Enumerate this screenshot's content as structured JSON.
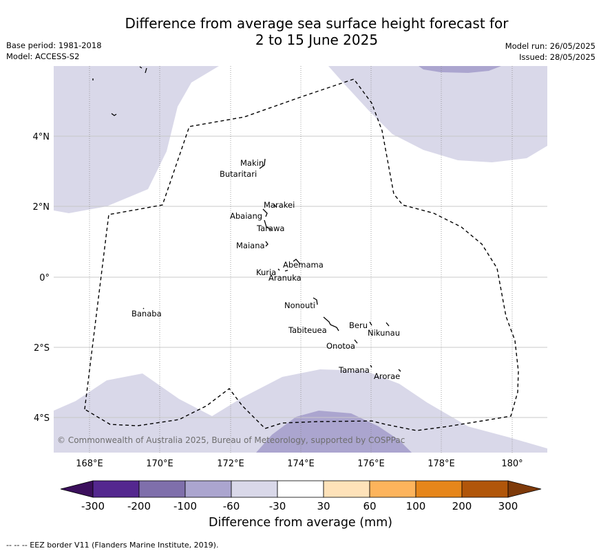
{
  "title_line1": "Difference from average sea surface height forecast for",
  "title_line2": "2 to 15 June 2025",
  "meta_left": [
    "Base period: 1981-2018",
    "Model: ACCESS-S2"
  ],
  "meta_right": [
    "Model run: 26/05/2025",
    "Issued: 28/05/2025"
  ],
  "lat_ticks": [
    "4°N",
    "2°N",
    "0°",
    "2°S",
    "4°S"
  ],
  "lon_ticks": [
    "168°E",
    "170°E",
    "172°E",
    "174°E",
    "176°E",
    "178°E",
    "180°"
  ],
  "islands": [
    "Makin",
    "Butaritari",
    "Marakei",
    "Abaiang",
    "Tarawa",
    "Maiana",
    "Abemama",
    "Kuria",
    "Aranuka",
    "Nonouti",
    "Banaba",
    "Tabiteuea",
    "Beru",
    "Nikunau",
    "Onotoa",
    "Tamana",
    "Arorae"
  ],
  "copyright": "© Commonwealth of Australia 2025, Bureau of Meteorology, supported by COSPPac",
  "colorbar": {
    "bins": [
      {
        "range": "< -300",
        "color": "#3b0f5c"
      },
      {
        "range": "-300 to -200",
        "color": "#54278f"
      },
      {
        "range": "-200 to -100",
        "color": "#7f6fab"
      },
      {
        "range": "-100 to -60",
        "color": "#aba5cf"
      },
      {
        "range": "-60 to -30",
        "color": "#d9d8e9"
      },
      {
        "range": "-30 to 30",
        "color": "#ffffff"
      },
      {
        "range": "30 to 60",
        "color": "#fee2b9"
      },
      {
        "range": "60 to 100",
        "color": "#fdb45c"
      },
      {
        "range": "100 to 200",
        "color": "#e6861a"
      },
      {
        "range": "200 to 300",
        "color": "#b1560a"
      },
      {
        "range": "> 300",
        "color": "#7e3a0a"
      }
    ],
    "tick_labels": [
      "-300",
      "-200",
      "-100",
      "-60",
      "-30",
      "30",
      "60",
      "100",
      "200",
      "300"
    ],
    "title": "Difference from average (mm)"
  },
  "footnote": "--  --  -- EEZ border V11 (Flanders Marine Institute, 2019)."
}
